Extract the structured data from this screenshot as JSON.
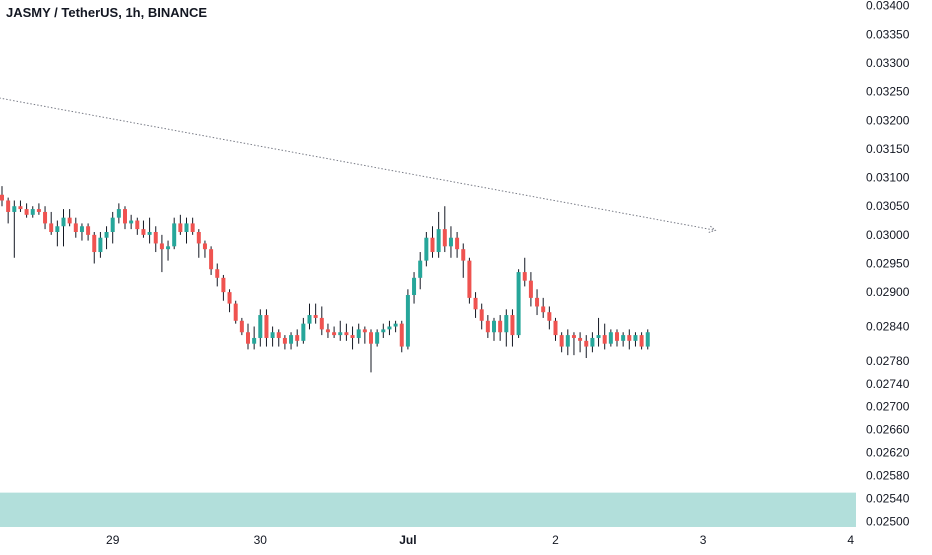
{
  "chart_data": {
    "type": "candlestick",
    "title": "JASMY / TetherUS, 1h, BINANCE",
    "colors": {
      "up": "#26a69a",
      "down": "#ef5350",
      "wick": "#131722",
      "zone": "#b2dfdb",
      "trendline": "#787b86",
      "text": "#131722"
    },
    "price_axis": {
      "ylim": [
        0.0249,
        0.0341
      ],
      "tick_labels": [
        "0.03400",
        "0.03350",
        "0.03300",
        "0.03250",
        "0.03200",
        "0.03150",
        "0.03100",
        "0.03050",
        "0.03000",
        "0.02950",
        "0.02900",
        "0.02840",
        "0.02780",
        "0.02740",
        "0.02700",
        "0.02660",
        "0.02620",
        "0.02580",
        "0.02540",
        "0.02500"
      ]
    },
    "time_axis": {
      "ticks": [
        {
          "label": "29",
          "bar": 18
        },
        {
          "label": "30",
          "bar": 42
        },
        {
          "label": "Jul",
          "bar": 66
        },
        {
          "label": "2",
          "bar": 90
        },
        {
          "label": "3",
          "bar": 114
        },
        {
          "label": "4",
          "bar": 138
        }
      ]
    },
    "zone": {
      "from": 0.0249,
      "to": 0.0255
    },
    "trendline": {
      "start": {
        "bar": -1,
        "price": 0.0324
      },
      "end": {
        "bar": 116,
        "price": 0.03008
      }
    },
    "candles": [
      [
        0.0307,
        0.03085,
        0.0305,
        0.0306
      ],
      [
        0.0306,
        0.03065,
        0.0302,
        0.0304
      ],
      [
        0.0304,
        0.0306,
        0.0296,
        0.0305
      ],
      [
        0.0305,
        0.0306,
        0.0304,
        0.03045
      ],
      [
        0.03045,
        0.03055,
        0.0303,
        0.03035
      ],
      [
        0.03035,
        0.0305,
        0.0303,
        0.03045
      ],
      [
        0.03045,
        0.03055,
        0.03035,
        0.0304
      ],
      [
        0.0304,
        0.0305,
        0.0301,
        0.0302
      ],
      [
        0.0302,
        0.0304,
        0.03,
        0.03005
      ],
      [
        0.03005,
        0.03025,
        0.0298,
        0.03015
      ],
      [
        0.03015,
        0.03045,
        0.0298,
        0.0303
      ],
      [
        0.0303,
        0.03045,
        0.03015,
        0.0302
      ],
      [
        0.0302,
        0.0303,
        0.02995,
        0.03005
      ],
      [
        0.03005,
        0.0302,
        0.0299,
        0.03015
      ],
      [
        0.03015,
        0.0302,
        0.0299,
        0.03
      ],
      [
        0.03,
        0.03005,
        0.0295,
        0.0297
      ],
      [
        0.0297,
        0.03005,
        0.0296,
        0.02995
      ],
      [
        0.02995,
        0.03015,
        0.02975,
        0.03005
      ],
      [
        0.03005,
        0.0304,
        0.02985,
        0.0303
      ],
      [
        0.0303,
        0.03055,
        0.0302,
        0.03045
      ],
      [
        0.03045,
        0.0305,
        0.0301,
        0.0302
      ],
      [
        0.0302,
        0.03035,
        0.0301,
        0.03025
      ],
      [
        0.03025,
        0.0303,
        0.03,
        0.0301
      ],
      [
        0.0301,
        0.03025,
        0.02995,
        0.03
      ],
      [
        0.03,
        0.0303,
        0.02985,
        0.03005
      ],
      [
        0.03005,
        0.03015,
        0.0297,
        0.02985
      ],
      [
        0.02985,
        0.03,
        0.02935,
        0.02975
      ],
      [
        0.02975,
        0.0299,
        0.02955,
        0.0298
      ],
      [
        0.0298,
        0.0303,
        0.02975,
        0.0302
      ],
      [
        0.0302,
        0.03035,
        0.03,
        0.03005
      ],
      [
        0.03005,
        0.0303,
        0.02985,
        0.0302
      ],
      [
        0.0302,
        0.0303,
        0.03,
        0.03005
      ],
      [
        0.03005,
        0.0301,
        0.0296,
        0.02985
      ],
      [
        0.02985,
        0.0299,
        0.0296,
        0.02975
      ],
      [
        0.02975,
        0.0298,
        0.0293,
        0.0294
      ],
      [
        0.0294,
        0.0295,
        0.0291,
        0.02925
      ],
      [
        0.02925,
        0.0293,
        0.02885,
        0.029
      ],
      [
        0.029,
        0.02905,
        0.02865,
        0.0288
      ],
      [
        0.0288,
        0.02885,
        0.02845,
        0.0285
      ],
      [
        0.0285,
        0.02855,
        0.02825,
        0.0283
      ],
      [
        0.0283,
        0.02845,
        0.028,
        0.0281
      ],
      [
        0.0281,
        0.0284,
        0.028,
        0.0282
      ],
      [
        0.0282,
        0.0287,
        0.02805,
        0.0286
      ],
      [
        0.0286,
        0.0287,
        0.02805,
        0.0282
      ],
      [
        0.0282,
        0.0284,
        0.02805,
        0.0283
      ],
      [
        0.0283,
        0.02835,
        0.02805,
        0.0282
      ],
      [
        0.0282,
        0.02825,
        0.028,
        0.0281
      ],
      [
        0.0281,
        0.0283,
        0.028,
        0.02825
      ],
      [
        0.02825,
        0.02835,
        0.02805,
        0.02815
      ],
      [
        0.02815,
        0.02855,
        0.0281,
        0.02845
      ],
      [
        0.02845,
        0.0288,
        0.02835,
        0.0286
      ],
      [
        0.0286,
        0.0288,
        0.02845,
        0.02855
      ],
      [
        0.02855,
        0.02875,
        0.02825,
        0.02835
      ],
      [
        0.02835,
        0.02845,
        0.0282,
        0.0283
      ],
      [
        0.0283,
        0.0284,
        0.0282,
        0.02825
      ],
      [
        0.02825,
        0.0285,
        0.02815,
        0.0283
      ],
      [
        0.0283,
        0.02845,
        0.02815,
        0.02825
      ],
      [
        0.02825,
        0.0284,
        0.028,
        0.0282
      ],
      [
        0.0282,
        0.02845,
        0.0281,
        0.02835
      ],
      [
        0.02835,
        0.0284,
        0.0281,
        0.0283
      ],
      [
        0.0283,
        0.02835,
        0.0276,
        0.0281
      ],
      [
        0.0281,
        0.02835,
        0.02805,
        0.0283
      ],
      [
        0.0283,
        0.02845,
        0.0282,
        0.02835
      ],
      [
        0.02835,
        0.0285,
        0.02825,
        0.0284
      ],
      [
        0.0284,
        0.0285,
        0.0283,
        0.02845
      ],
      [
        0.02845,
        0.0285,
        0.02795,
        0.02805
      ],
      [
        0.02805,
        0.02905,
        0.028,
        0.02895
      ],
      [
        0.02895,
        0.02935,
        0.0288,
        0.02925
      ],
      [
        0.02925,
        0.0297,
        0.02905,
        0.02955
      ],
      [
        0.02955,
        0.03005,
        0.02945,
        0.02995
      ],
      [
        0.02995,
        0.03015,
        0.0296,
        0.0297
      ],
      [
        0.0297,
        0.0304,
        0.0296,
        0.0301
      ],
      [
        0.0301,
        0.0305,
        0.0297,
        0.0298
      ],
      [
        0.0298,
        0.03015,
        0.0296,
        0.02995
      ],
      [
        0.02995,
        0.03005,
        0.0296,
        0.02975
      ],
      [
        0.02975,
        0.02985,
        0.02925,
        0.02955
      ],
      [
        0.02955,
        0.0296,
        0.0288,
        0.0289
      ],
      [
        0.0289,
        0.029,
        0.02855,
        0.0287
      ],
      [
        0.0287,
        0.0288,
        0.02835,
        0.0285
      ],
      [
        0.0285,
        0.0286,
        0.0282,
        0.0283
      ],
      [
        0.0283,
        0.02855,
        0.02815,
        0.0285
      ],
      [
        0.0285,
        0.0286,
        0.02815,
        0.0283
      ],
      [
        0.0283,
        0.0287,
        0.02805,
        0.0286
      ],
      [
        0.0286,
        0.0287,
        0.02805,
        0.02825
      ],
      [
        0.02825,
        0.0294,
        0.0282,
        0.02935
      ],
      [
        0.02935,
        0.0296,
        0.0291,
        0.0292
      ],
      [
        0.0292,
        0.02935,
        0.02875,
        0.0289
      ],
      [
        0.0289,
        0.02905,
        0.0286,
        0.02875
      ],
      [
        0.02875,
        0.0289,
        0.02855,
        0.02865
      ],
      [
        0.02865,
        0.02875,
        0.02835,
        0.0285
      ],
      [
        0.0285,
        0.02855,
        0.02815,
        0.02825
      ],
      [
        0.02825,
        0.0283,
        0.02795,
        0.02805
      ],
      [
        0.02805,
        0.02835,
        0.0279,
        0.02825
      ],
      [
        0.02825,
        0.0283,
        0.0279,
        0.0282
      ],
      [
        0.0282,
        0.0283,
        0.02795,
        0.02815
      ],
      [
        0.02815,
        0.02825,
        0.02785,
        0.02805
      ],
      [
        0.02805,
        0.0283,
        0.02795,
        0.0282
      ],
      [
        0.0282,
        0.02855,
        0.02805,
        0.02825
      ],
      [
        0.02825,
        0.02845,
        0.028,
        0.0281
      ],
      [
        0.0281,
        0.02835,
        0.02805,
        0.0283
      ],
      [
        0.0283,
        0.02835,
        0.02805,
        0.02815
      ],
      [
        0.02815,
        0.0283,
        0.02805,
        0.02825
      ],
      [
        0.02825,
        0.02835,
        0.028,
        0.02815
      ],
      [
        0.02815,
        0.0283,
        0.02805,
        0.02825
      ],
      [
        0.02825,
        0.0283,
        0.028,
        0.02805
      ],
      [
        0.02805,
        0.02835,
        0.028,
        0.0283
      ]
    ]
  }
}
